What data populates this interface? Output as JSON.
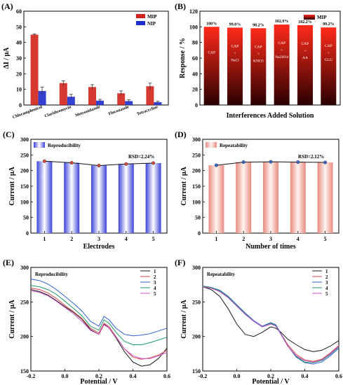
{
  "colors": {
    "mip_red": "#d0231c",
    "nip_blue": "#1f2ccc",
    "blue_bar_edge": "#5b63e0",
    "pink_bar_edge": "#e8a59c",
    "curves": [
      "#1a1a1a",
      "#d64a4a",
      "#2f5fd0",
      "#1f9a6a",
      "#c850c8"
    ]
  },
  "chart_data": [
    {
      "type": "bar",
      "panel_label": "(A)",
      "ylabel": "ΔI / μA",
      "ylim": [
        0,
        60
      ],
      "yticks": [
        0,
        10,
        20,
        30,
        40,
        50,
        60
      ],
      "categories": [
        "Chloramphenicol",
        "Clarithromycin",
        "Metronidazole",
        "Fluconazole",
        "Tetracycline"
      ],
      "series": [
        {
          "name": "MIP",
          "values": [
            45,
            14,
            11.5,
            7.5,
            12
          ],
          "errors": [
            0.5,
            1.5,
            1.5,
            1.5,
            2
          ]
        },
        {
          "name": "NIP",
          "values": [
            9,
            5.3,
            2.8,
            2.5,
            1.8
          ],
          "errors": [
            2.5,
            1.5,
            0.8,
            0.8,
            0.6
          ]
        }
      ],
      "legend_position": "top-right"
    },
    {
      "type": "bar",
      "panel_label": "(B)",
      "ylabel": "Response / %",
      "xlabel": "Interferences Added Solution",
      "ylim": [
        0,
        120
      ],
      "yticks": [
        0,
        20,
        40,
        60,
        80,
        100,
        120
      ],
      "categories": [
        "CAP",
        "CAP + NaCl",
        "CAP + KNO3",
        "CAP + Na2SO4",
        "CAP + AA",
        "CAP + GLU"
      ],
      "bar_labels": [
        [
          "CAP"
        ],
        [
          "CAP",
          "+",
          "NaCl"
        ],
        [
          "CAP",
          "+",
          "KNO3"
        ],
        [
          "CAP",
          "+",
          "Na2SO4"
        ],
        [
          "CAP",
          "+",
          "AA"
        ],
        [
          "CAP",
          "+",
          "GLU"
        ]
      ],
      "series": [
        {
          "name": "MIP",
          "values": [
            100,
            99.0,
            98.2,
            102.9,
            102.2,
            99.2
          ]
        }
      ],
      "data_labels": [
        "100%",
        "99.0%",
        "98.2%",
        "102.9%",
        "102.2%",
        "99.2%"
      ],
      "legend_position": "top-right"
    },
    {
      "type": "bar",
      "panel_label": "(C)",
      "ylabel": "Current / μA",
      "xlabel": "Electrodes",
      "ylim": [
        0,
        300
      ],
      "yticks": [
        0,
        50,
        100,
        150,
        200,
        250,
        300
      ],
      "categories": [
        "1",
        "2",
        "3",
        "4",
        "5"
      ],
      "series": [
        {
          "name": "Reproducibility",
          "values": [
            230,
            225,
            216,
            221,
            224
          ]
        }
      ],
      "annotation": "RSD=2.24%",
      "legend_position": "top-left"
    },
    {
      "type": "bar",
      "panel_label": "(D)",
      "ylabel": "Current / μA",
      "xlabel": "Number of times",
      "ylim": [
        0,
        300
      ],
      "yticks": [
        0,
        50,
        100,
        150,
        200,
        250,
        300
      ],
      "categories": [
        "1",
        "2",
        "3",
        "4",
        "5"
      ],
      "series": [
        {
          "name": "Repeatability",
          "values": [
            217,
            227,
            228,
            227,
            226
          ]
        }
      ],
      "annotation": "RSD=2.12%",
      "legend_position": "top-left"
    },
    {
      "type": "line",
      "panel_label": "(E)",
      "title": "Reproducibility",
      "ylabel": "Current / μA",
      "xlabel": "Potential / V",
      "xlim": [
        -0.2,
        0.6
      ],
      "ylim": [
        150,
        300
      ],
      "xticks": [
        -0.2,
        0.0,
        0.2,
        0.4,
        0.6
      ],
      "yticks": [
        150,
        200,
        250,
        300
      ],
      "x": [
        -0.2,
        -0.15,
        -0.1,
        -0.05,
        0.0,
        0.05,
        0.1,
        0.15,
        0.2,
        0.23,
        0.26,
        0.3,
        0.35,
        0.4,
        0.45,
        0.5,
        0.55,
        0.6
      ],
      "series": [
        {
          "name": "1",
          "values": [
            268,
            265,
            260,
            252,
            243,
            235,
            225,
            210,
            203,
            218,
            212,
            198,
            178,
            163,
            157,
            159,
            168,
            183
          ]
        },
        {
          "name": "2",
          "values": [
            270,
            268,
            263,
            255,
            245,
            236,
            226,
            212,
            205,
            219,
            214,
            200,
            182,
            170,
            167,
            169,
            173,
            180
          ]
        },
        {
          "name": "3",
          "values": [
            283,
            281,
            276,
            268,
            258,
            248,
            237,
            222,
            215,
            229,
            224,
            212,
            203,
            201,
            202,
            204,
            208,
            212
          ]
        },
        {
          "name": "4",
          "values": [
            274,
            272,
            268,
            261,
            251,
            241,
            230,
            215,
            209,
            224,
            219,
            206,
            193,
            188,
            188,
            191,
            195,
            199
          ]
        },
        {
          "name": "5",
          "values": [
            266,
            264,
            259,
            251,
            242,
            233,
            222,
            209,
            203,
            217,
            212,
            199,
            182,
            172,
            168,
            168,
            172,
            177
          ]
        }
      ],
      "legend_position": "top-right"
    },
    {
      "type": "line",
      "panel_label": "(F)",
      "title": "Repeatability",
      "ylabel": "Current / μA",
      "xlabel": "Potential / V",
      "xlim": [
        -0.2,
        0.6
      ],
      "ylim": [
        150,
        300
      ],
      "xticks": [
        -0.2,
        0.0,
        0.2,
        0.4,
        0.6
      ],
      "yticks": [
        150,
        200,
        250,
        300
      ],
      "x": [
        -0.2,
        -0.15,
        -0.1,
        -0.05,
        0.0,
        0.05,
        0.1,
        0.15,
        0.2,
        0.23,
        0.26,
        0.3,
        0.35,
        0.4,
        0.45,
        0.5,
        0.55,
        0.6
      ],
      "series": [
        {
          "name": "1",
          "values": [
            272,
            268,
            258,
            240,
            218,
            203,
            200,
            206,
            214,
            212,
            206,
            196,
            188,
            181,
            178,
            180,
            186,
            194
          ]
        },
        {
          "name": "2",
          "values": [
            272,
            270,
            265,
            256,
            244,
            232,
            222,
            214,
            218,
            216,
            204,
            188,
            174,
            166,
            164,
            167,
            176,
            187
          ]
        },
        {
          "name": "3",
          "values": [
            273,
            271,
            267,
            258,
            246,
            234,
            223,
            215,
            220,
            217,
            204,
            186,
            170,
            162,
            160,
            163,
            172,
            183
          ]
        },
        {
          "name": "4",
          "values": [
            273,
            271,
            266,
            257,
            245,
            233,
            222,
            214,
            219,
            216,
            203,
            186,
            171,
            163,
            162,
            165,
            174,
            185
          ]
        },
        {
          "name": "5",
          "values": [
            272,
            270,
            265,
            256,
            244,
            232,
            222,
            214,
            218,
            215,
            203,
            186,
            172,
            165,
            163,
            166,
            175,
            186
          ]
        }
      ],
      "legend_position": "top-right"
    }
  ]
}
